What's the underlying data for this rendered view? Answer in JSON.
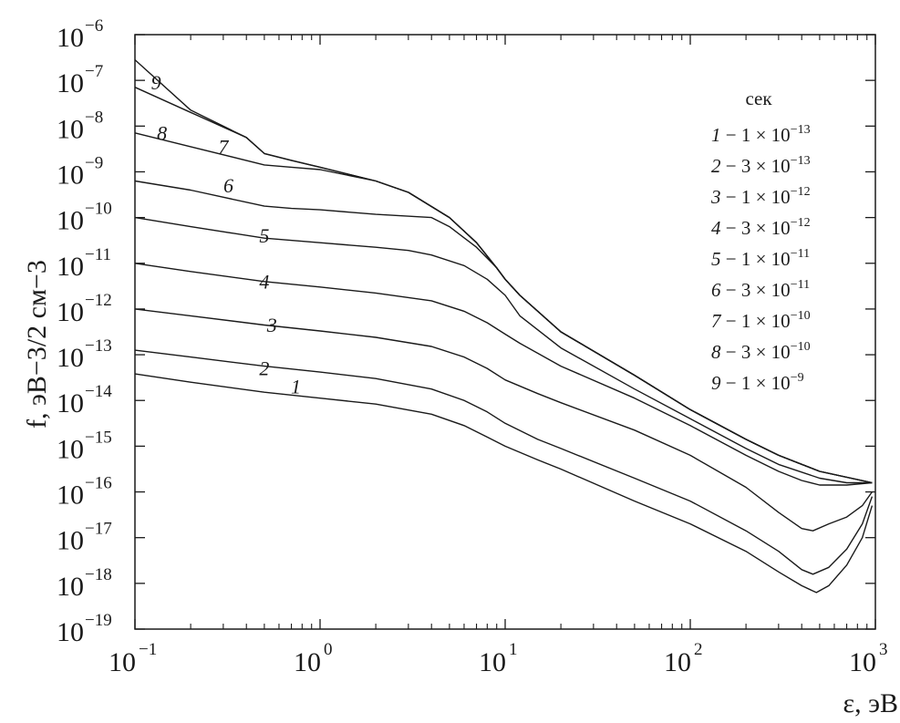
{
  "chart_data": {
    "type": "line",
    "xlabel": "ε, эВ",
    "ylabel": "f, эВ−3/2 см−3",
    "x_scale": "log",
    "y_scale": "log",
    "xlim": [
      0.1,
      1000
    ],
    "ylim": [
      1e-19,
      1e-06
    ],
    "x_ticks": [
      {
        "base": "10",
        "exp": "−1",
        "value": 0.1
      },
      {
        "base": "10",
        "exp": "0",
        "value": 1
      },
      {
        "base": "10",
        "exp": "1",
        "value": 10
      },
      {
        "base": "10",
        "exp": "2",
        "value": 100
      },
      {
        "base": "10",
        "exp": "3",
        "value": 1000
      }
    ],
    "y_ticks": [
      {
        "base": "10",
        "exp": "−6",
        "value": 1e-06
      },
      {
        "base": "10",
        "exp": "−7",
        "value": 1e-07
      },
      {
        "base": "10",
        "exp": "−8",
        "value": 1e-08
      },
      {
        "base": "10",
        "exp": "−9",
        "value": 1e-09
      },
      {
        "base": "10",
        "exp": "−10",
        "value": 1e-10
      },
      {
        "base": "10",
        "exp": "−11",
        "value": 1e-11
      },
      {
        "base": "10",
        "exp": "−12",
        "value": 1e-12
      },
      {
        "base": "10",
        "exp": "−13",
        "value": 1e-13
      },
      {
        "base": "10",
        "exp": "−14",
        "value": 1e-14
      },
      {
        "base": "10",
        "exp": "−15",
        "value": 1e-15
      },
      {
        "base": "10",
        "exp": "−16",
        "value": 1e-16
      },
      {
        "base": "10",
        "exp": "−17",
        "value": 1e-17
      },
      {
        "base": "10",
        "exp": "−18",
        "value": 1e-18
      },
      {
        "base": "10",
        "exp": "−19",
        "value": 1e-19
      }
    ],
    "legend": {
      "title": "сек",
      "position": "right",
      "entries": [
        {
          "num": "1",
          "text": " − 1 × 10",
          "exp": "−13"
        },
        {
          "num": "2",
          "text": " − 3 × 10",
          "exp": "−13"
        },
        {
          "num": "3",
          "text": " − 1 × 10",
          "exp": "−12"
        },
        {
          "num": "4",
          "text": " − 3 × 10",
          "exp": "−12"
        },
        {
          "num": "5",
          "text": " − 1 × 10",
          "exp": "−11"
        },
        {
          "num": "6",
          "text": " − 3 × 10",
          "exp": "−11"
        },
        {
          "num": "7",
          "text": " − 1 × 10",
          "exp": "−10"
        },
        {
          "num": "8",
          "text": " − 3 × 10",
          "exp": "−10"
        },
        {
          "num": "9",
          "text": " − 1 × 10",
          "exp": "−9"
        }
      ]
    },
    "series": [
      {
        "name": "1",
        "label_at": [
          0.74,
          -13.85
        ],
        "points": [
          [
            0.1,
            -13.42
          ],
          [
            0.2,
            -13.6
          ],
          [
            0.5,
            -13.82
          ],
          [
            1,
            -13.95
          ],
          [
            2,
            -14.08
          ],
          [
            4,
            -14.3
          ],
          [
            6,
            -14.55
          ],
          [
            8,
            -14.8
          ],
          [
            10,
            -15.0
          ],
          [
            15,
            -15.3
          ],
          [
            20,
            -15.5
          ],
          [
            50,
            -16.2
          ],
          [
            100,
            -16.7
          ],
          [
            200,
            -17.3
          ],
          [
            300,
            -17.75
          ],
          [
            400,
            -18.05
          ],
          [
            480,
            -18.2
          ],
          [
            560,
            -18.05
          ],
          [
            700,
            -17.6
          ],
          [
            850,
            -17.0
          ],
          [
            960,
            -16.3
          ]
        ]
      },
      {
        "name": "2",
        "label_at": [
          0.5,
          -13.45
        ],
        "points": [
          [
            0.1,
            -12.9
          ],
          [
            0.2,
            -13.05
          ],
          [
            0.5,
            -13.25
          ],
          [
            1,
            -13.38
          ],
          [
            2,
            -13.52
          ],
          [
            4,
            -13.75
          ],
          [
            6,
            -14.0
          ],
          [
            8,
            -14.25
          ],
          [
            10,
            -14.5
          ],
          [
            15,
            -14.85
          ],
          [
            20,
            -15.05
          ],
          [
            50,
            -15.7
          ],
          [
            100,
            -16.2
          ],
          [
            200,
            -16.85
          ],
          [
            300,
            -17.3
          ],
          [
            400,
            -17.7
          ],
          [
            460,
            -17.8
          ],
          [
            560,
            -17.65
          ],
          [
            700,
            -17.25
          ],
          [
            850,
            -16.7
          ],
          [
            960,
            -16.1
          ]
        ]
      },
      {
        "name": "3",
        "label_at": [
          0.55,
          -12.5
        ],
        "points": [
          [
            0.1,
            -12.0
          ],
          [
            0.2,
            -12.15
          ],
          [
            0.5,
            -12.35
          ],
          [
            1,
            -12.48
          ],
          [
            2,
            -12.62
          ],
          [
            4,
            -12.82
          ],
          [
            6,
            -13.05
          ],
          [
            8,
            -13.3
          ],
          [
            10,
            -13.55
          ],
          [
            15,
            -13.85
          ],
          [
            20,
            -14.05
          ],
          [
            50,
            -14.65
          ],
          [
            100,
            -15.2
          ],
          [
            200,
            -15.9
          ],
          [
            300,
            -16.45
          ],
          [
            400,
            -16.8
          ],
          [
            460,
            -16.85
          ],
          [
            560,
            -16.7
          ],
          [
            700,
            -16.55
          ],
          [
            850,
            -16.3
          ],
          [
            960,
            -16.0
          ]
        ]
      },
      {
        "name": "4",
        "label_at": [
          0.5,
          -11.55
        ],
        "points": [
          [
            0.1,
            -11.0
          ],
          [
            0.2,
            -11.18
          ],
          [
            0.5,
            -11.4
          ],
          [
            1,
            -11.52
          ],
          [
            2,
            -11.65
          ],
          [
            4,
            -11.82
          ],
          [
            6,
            -12.05
          ],
          [
            8,
            -12.3
          ],
          [
            10,
            -12.55
          ],
          [
            12,
            -12.75
          ],
          [
            20,
            -13.25
          ],
          [
            50,
            -13.95
          ],
          [
            100,
            -14.55
          ],
          [
            200,
            -15.2
          ],
          [
            300,
            -15.55
          ],
          [
            400,
            -15.75
          ],
          [
            500,
            -15.85
          ],
          [
            700,
            -15.85
          ],
          [
            960,
            -15.8
          ]
        ]
      },
      {
        "name": "5",
        "label_at": [
          0.5,
          -10.55
        ],
        "points": [
          [
            0.1,
            -10.0
          ],
          [
            0.2,
            -10.2
          ],
          [
            0.5,
            -10.45
          ],
          [
            1,
            -10.55
          ],
          [
            2,
            -10.65
          ],
          [
            3,
            -10.72
          ],
          [
            4,
            -10.82
          ],
          [
            6,
            -11.05
          ],
          [
            8,
            -11.35
          ],
          [
            10,
            -11.7
          ],
          [
            12,
            -12.15
          ],
          [
            20,
            -12.85
          ],
          [
            50,
            -13.75
          ],
          [
            100,
            -14.4
          ],
          [
            200,
            -15.05
          ],
          [
            300,
            -15.4
          ],
          [
            500,
            -15.7
          ],
          [
            700,
            -15.8
          ],
          [
            960,
            -15.8
          ]
        ]
      },
      {
        "name": "6",
        "label_at": [
          0.32,
          -9.45
        ],
        "points": [
          [
            0.1,
            -9.2
          ],
          [
            0.2,
            -9.4
          ],
          [
            0.5,
            -9.75
          ],
          [
            0.7,
            -9.8
          ],
          [
            1,
            -9.83
          ],
          [
            2,
            -9.93
          ],
          [
            4,
            -10.0
          ],
          [
            5,
            -10.2
          ],
          [
            7,
            -10.65
          ],
          [
            9,
            -11.1
          ],
          [
            10,
            -11.35
          ],
          [
            12,
            -11.7
          ],
          [
            20,
            -12.5
          ],
          [
            50,
            -13.45
          ],
          [
            100,
            -14.2
          ],
          [
            200,
            -14.85
          ],
          [
            300,
            -15.2
          ],
          [
            500,
            -15.55
          ],
          [
            960,
            -15.8
          ]
        ]
      },
      {
        "name": "7",
        "label_at": [
          0.3,
          -8.6
        ],
        "points": [
          [
            0.1,
            -8.15
          ],
          [
            0.2,
            -8.45
          ],
          [
            0.5,
            -8.85
          ],
          [
            0.7,
            -8.9
          ],
          [
            1,
            -8.95
          ],
          [
            2,
            -9.2
          ],
          [
            3,
            -9.45
          ],
          [
            5,
            -10.0
          ],
          [
            7,
            -10.55
          ],
          [
            9,
            -11.1
          ],
          [
            10,
            -11.35
          ],
          [
            12,
            -11.7
          ],
          [
            20,
            -12.5
          ],
          [
            50,
            -13.45
          ],
          [
            100,
            -14.2
          ],
          [
            200,
            -14.85
          ],
          [
            300,
            -15.2
          ],
          [
            500,
            -15.55
          ],
          [
            960,
            -15.8
          ]
        ]
      },
      {
        "name": "8",
        "label_at": [
          0.14,
          -8.3
        ],
        "points": [
          [
            0.1,
            -7.15
          ],
          [
            0.2,
            -7.7
          ],
          [
            0.4,
            -8.25
          ],
          [
            0.5,
            -8.6
          ],
          [
            0.7,
            -8.75
          ],
          [
            1,
            -8.9
          ],
          [
            2,
            -9.2
          ],
          [
            3,
            -9.45
          ],
          [
            5,
            -10.0
          ],
          [
            7,
            -10.55
          ],
          [
            9,
            -11.1
          ],
          [
            10,
            -11.35
          ],
          [
            12,
            -11.7
          ],
          [
            20,
            -12.5
          ],
          [
            50,
            -13.45
          ],
          [
            100,
            -14.2
          ],
          [
            200,
            -14.85
          ],
          [
            300,
            -15.2
          ],
          [
            500,
            -15.55
          ],
          [
            960,
            -15.8
          ]
        ]
      },
      {
        "name": "9",
        "label_at": [
          0.13,
          -7.2
        ],
        "points": [
          [
            0.1,
            -6.55
          ],
          [
            0.2,
            -7.65
          ],
          [
            0.4,
            -8.25
          ],
          [
            0.5,
            -8.6
          ],
          [
            0.7,
            -8.75
          ],
          [
            1,
            -8.9
          ],
          [
            2,
            -9.2
          ],
          [
            3,
            -9.45
          ],
          [
            5,
            -10.0
          ],
          [
            7,
            -10.55
          ],
          [
            9,
            -11.1
          ],
          [
            10,
            -11.35
          ],
          [
            12,
            -11.7
          ],
          [
            20,
            -12.5
          ],
          [
            50,
            -13.45
          ],
          [
            100,
            -14.2
          ],
          [
            200,
            -14.85
          ],
          [
            300,
            -15.2
          ],
          [
            500,
            -15.55
          ],
          [
            960,
            -15.8
          ]
        ]
      }
    ],
    "grid": false
  }
}
